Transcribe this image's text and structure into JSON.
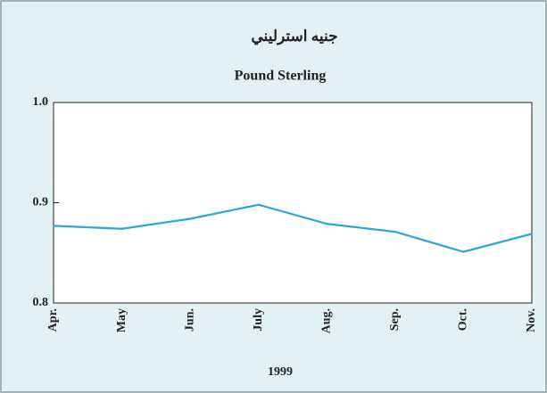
{
  "chart_data": {
    "type": "line",
    "title": "جنيه استرليني",
    "subtitle": "Pound Sterling",
    "x_label": "1999",
    "categories": [
      "Apr.",
      "May",
      "Jun.",
      "July",
      "Aug.",
      "Sep.",
      "Oct.",
      "Nov."
    ],
    "values": [
      0.877,
      0.874,
      0.884,
      0.898,
      0.879,
      0.871,
      0.851,
      0.869
    ],
    "color": "#2aa7d6",
    "ylim": [
      0.8,
      1
    ],
    "yticks": [
      0.8,
      0.9,
      {
        "value": 1,
        "label": "1.0"
      }
    ]
  }
}
